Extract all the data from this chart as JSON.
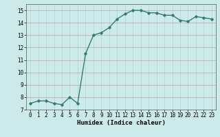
{
  "x": [
    0,
    1,
    2,
    3,
    4,
    5,
    6,
    7,
    8,
    9,
    10,
    11,
    12,
    13,
    14,
    15,
    16,
    17,
    18,
    19,
    20,
    21,
    22,
    23
  ],
  "y": [
    7.5,
    7.7,
    7.7,
    7.5,
    7.4,
    8.0,
    7.5,
    11.5,
    13.0,
    13.2,
    13.6,
    14.3,
    14.7,
    15.0,
    15.0,
    14.8,
    14.8,
    14.6,
    14.6,
    14.2,
    14.1,
    14.5,
    14.4,
    14.3
  ],
  "line_color": "#2e7d6e",
  "marker": "D",
  "marker_size": 1.8,
  "bg_color": "#cceaea",
  "grid_color": "#aad4d4",
  "grid_color_major": "#c4a0a0",
  "xlabel": "Humidex (Indice chaleur)",
  "xlim": [
    -0.5,
    23.5
  ],
  "ylim": [
    7,
    15.5
  ],
  "yticks": [
    7,
    8,
    9,
    10,
    11,
    12,
    13,
    14,
    15
  ],
  "xticks": [
    0,
    1,
    2,
    3,
    4,
    5,
    6,
    7,
    8,
    9,
    10,
    11,
    12,
    13,
    14,
    15,
    16,
    17,
    18,
    19,
    20,
    21,
    22,
    23
  ],
  "tick_fontsize": 5.5,
  "xlabel_fontsize": 6.5,
  "linewidth": 1.0
}
